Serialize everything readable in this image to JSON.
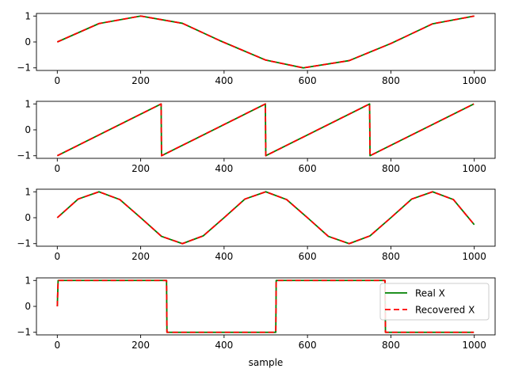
{
  "chart_data": {
    "type": "line",
    "xlabel": "sample",
    "legend": {
      "placement": "lower-right of bottom subplot",
      "entries": [
        {
          "label": "Real X",
          "color": "#008000",
          "style": "solid"
        },
        {
          "label": "Recovered X",
          "color": "#ff0000",
          "style": "dashed"
        }
      ]
    },
    "subplots": [
      {
        "signal": "sinusoid",
        "x_ticks": [
          0,
          200,
          400,
          600,
          800,
          1000
        ],
        "y_ticks": [
          -1,
          0,
          1
        ],
        "xlim": [
          -50,
          1050
        ],
        "ylim": [
          -1.1,
          1.1
        ],
        "series": [
          {
            "name": "Real X",
            "color": "#008000",
            "x": [
              0,
              100,
              200,
              300,
              390,
              500,
              590,
              700,
              800,
              900,
              1000
            ],
            "y": [
              0,
              0.71,
              1,
              0.72,
              0.05,
              -0.7,
              -1,
              -0.72,
              -0.06,
              0.7,
              1
            ]
          },
          {
            "name": "Recovered X",
            "color": "#ff0000",
            "dashed": true,
            "x": [
              0,
              100,
              200,
              300,
              390,
              500,
              590,
              700,
              800,
              900,
              1000
            ],
            "y": [
              0,
              0.71,
              1,
              0.72,
              0.05,
              -0.7,
              -1,
              -0.72,
              -0.06,
              0.7,
              1
            ]
          }
        ]
      },
      {
        "signal": "sawtooth",
        "x_ticks": [
          0,
          200,
          400,
          600,
          800,
          1000
        ],
        "y_ticks": [
          -1,
          0,
          1
        ],
        "xlim": [
          -50,
          1050
        ],
        "ylim": [
          -1.1,
          1.1
        ],
        "series": [
          {
            "name": "Real X",
            "color": "#008000",
            "x": [
              0,
              249,
              250,
              499,
              500,
              749,
              750,
              999
            ],
            "y": [
              -1,
              1,
              -1,
              1,
              -1,
              1,
              -1,
              1
            ]
          },
          {
            "name": "Recovered X",
            "color": "#ff0000",
            "dashed": true,
            "x": [
              0,
              249,
              250,
              499,
              500,
              749,
              750,
              999
            ],
            "y": [
              -1,
              1,
              -1,
              1,
              -1,
              1,
              -1,
              1
            ]
          }
        ]
      },
      {
        "signal": "sinusoid",
        "x_ticks": [
          0,
          200,
          400,
          600,
          800,
          1000
        ],
        "y_ticks": [
          -1,
          0,
          1
        ],
        "xlim": [
          -50,
          1050
        ],
        "ylim": [
          -1.1,
          1.1
        ],
        "series": [
          {
            "name": "Real X",
            "color": "#008000",
            "x": [
              0,
              50,
              100,
              150,
              200,
              250,
              300,
              350,
              400,
              450,
              500,
              550,
              600,
              650,
              700,
              750,
              800,
              850,
              900,
              950,
              1000
            ],
            "y": [
              0,
              0.72,
              1,
              0.7,
              0,
              -0.72,
              -1,
              -0.7,
              0,
              0.72,
              1,
              0.7,
              0,
              -0.72,
              -1,
              -0.7,
              0,
              0.72,
              1,
              0.7,
              -0.27
            ]
          },
          {
            "name": "Recovered X",
            "color": "#ff0000",
            "dashed": true,
            "x": [
              0,
              50,
              100,
              150,
              200,
              250,
              300,
              350,
              400,
              450,
              500,
              550,
              600,
              650,
              700,
              750,
              800,
              850,
              900,
              950,
              1000
            ],
            "y": [
              0,
              0.72,
              1,
              0.7,
              0,
              -0.72,
              -1,
              -0.7,
              0,
              0.72,
              1,
              0.7,
              0,
              -0.72,
              -1,
              -0.7,
              0,
              0.72,
              1,
              0.7,
              -0.27
            ]
          }
        ]
      },
      {
        "signal": "square",
        "x_ticks": [
          0,
          200,
          400,
          600,
          800,
          1000
        ],
        "y_ticks": [
          -1,
          0,
          1
        ],
        "xlim": [
          -50,
          1050
        ],
        "ylim": [
          -1.1,
          1.1
        ],
        "series": [
          {
            "name": "Real X",
            "color": "#008000",
            "x": [
              0,
              2,
              262,
              263,
              524,
              525,
              786,
              787,
              999
            ],
            "y": [
              0,
              1,
              1,
              -1,
              -1,
              1,
              1,
              -1,
              -1
            ]
          },
          {
            "name": "Recovered X",
            "color": "#ff0000",
            "dashed": true,
            "x": [
              0,
              2,
              262,
              263,
              524,
              525,
              786,
              787,
              999
            ],
            "y": [
              0,
              1,
              1,
              -1,
              -1,
              1,
              1,
              -1,
              -1
            ]
          }
        ]
      }
    ]
  }
}
